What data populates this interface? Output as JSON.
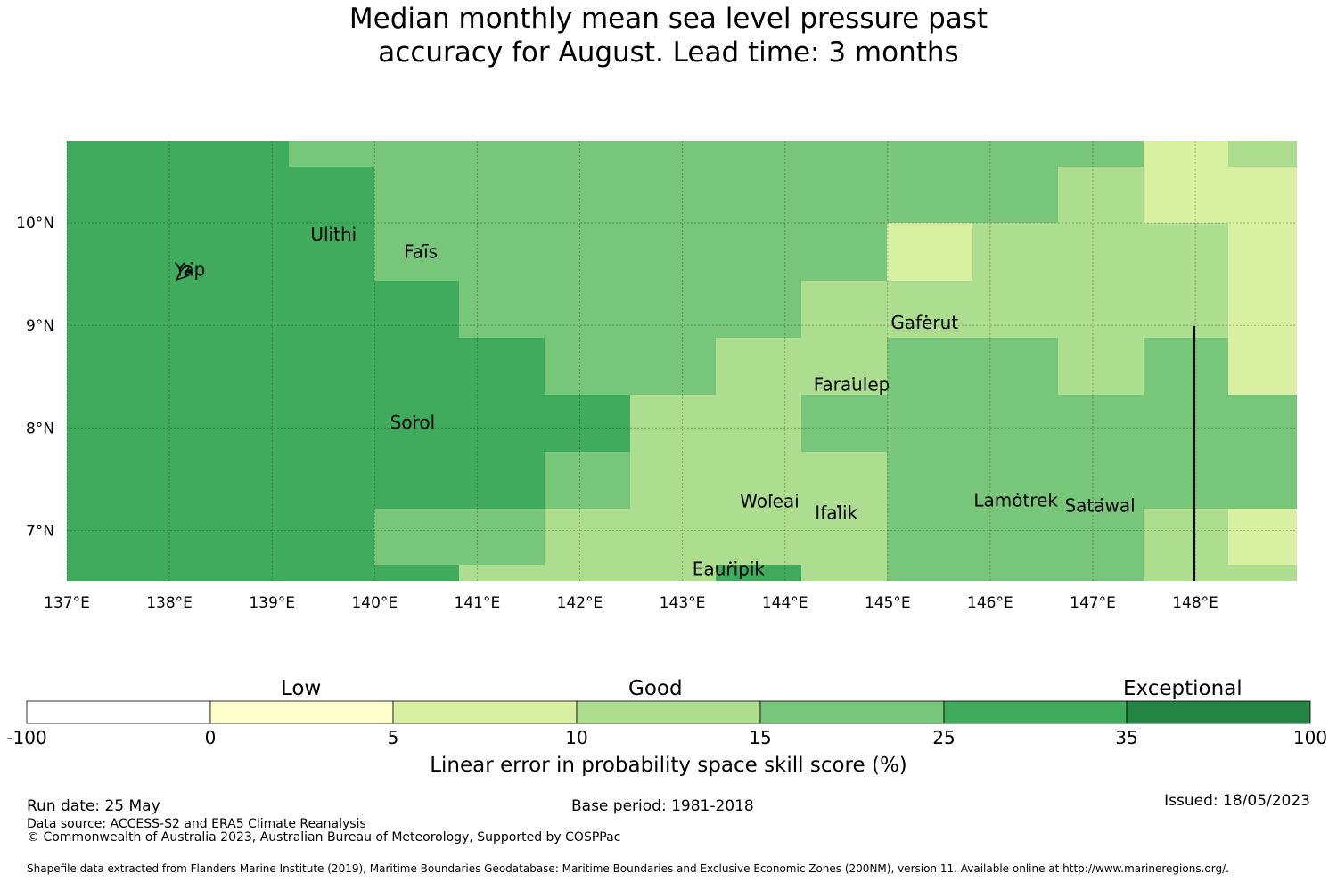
{
  "title_line1": "Median monthly mean sea level pressure past",
  "title_line2": "accuracy for August. Lead time: 3 months",
  "map": {
    "lon_labels": [
      "137°E",
      "138°E",
      "139°E",
      "140°E",
      "141°E",
      "142°E",
      "143°E",
      "144°E",
      "145°E",
      "146°E",
      "147°E",
      "148°E"
    ],
    "lat_labels": [
      "10°N",
      "9°N",
      "8°N",
      "7°N"
    ],
    "colors": {
      "c15_25": "#78c679",
      "c25_35": "#41ab5d",
      "c10_15": "#addd8e",
      "c5_10": "#d9f0a3"
    },
    "places": [
      {
        "name": "Yap",
        "lon": 138.2,
        "lat": 9.52
      },
      {
        "name": "Ulithi",
        "lon": 139.6,
        "lat": 9.86
      },
      {
        "name": "Faīs",
        "lon": 140.45,
        "lat": 9.69
      },
      {
        "name": "Gaferut",
        "lon": 145.36,
        "lat": 9.0
      },
      {
        "name": "Faraulep",
        "lon": 144.65,
        "lat": 8.4
      },
      {
        "name": "Sorol",
        "lon": 140.37,
        "lat": 8.03
      },
      {
        "name": "Woleai",
        "lon": 143.85,
        "lat": 7.26
      },
      {
        "name": "Ifalik",
        "lon": 144.5,
        "lat": 7.15
      },
      {
        "name": "Lamotrek",
        "lon": 146.25,
        "lat": 7.27
      },
      {
        "name": "Satawal",
        "lon": 147.07,
        "lat": 7.22
      },
      {
        "name": "Eauripik",
        "lon": 143.45,
        "lat": 6.6
      }
    ]
  },
  "legend": {
    "headings": {
      "low": "Low",
      "good": "Good",
      "exceptional": "Exceptional"
    },
    "ticks": [
      "-100",
      "0",
      "5",
      "10",
      "15",
      "25",
      "35",
      "100"
    ],
    "colors": [
      "#ffffff",
      "#ffffcc",
      "#d9f0a3",
      "#addd8e",
      "#78c679",
      "#41ab5d",
      "#238443"
    ],
    "label": "Linear error in probability space skill score (%)"
  },
  "footer": {
    "run_date": "Run date: 25 May",
    "base_period": "Base period: 1981-2018",
    "issued": "Issued: 18/05/2023",
    "data_source": "Data source: ACCESS-S2 and ERA5 Climate Reanalysis",
    "copyright": "© Commonwealth of Australia 2023, Australian Bureau of Meteorology, Supported by COSPPac",
    "shapefile": "Shapefile data extracted from Flanders Marine Institute (2019), Maritime Boundaries Geodatabase: Maritime Boundaries and Exclusive Economic Zones (200NM), version 11. Available online at http://www.marineregions.org/."
  }
}
